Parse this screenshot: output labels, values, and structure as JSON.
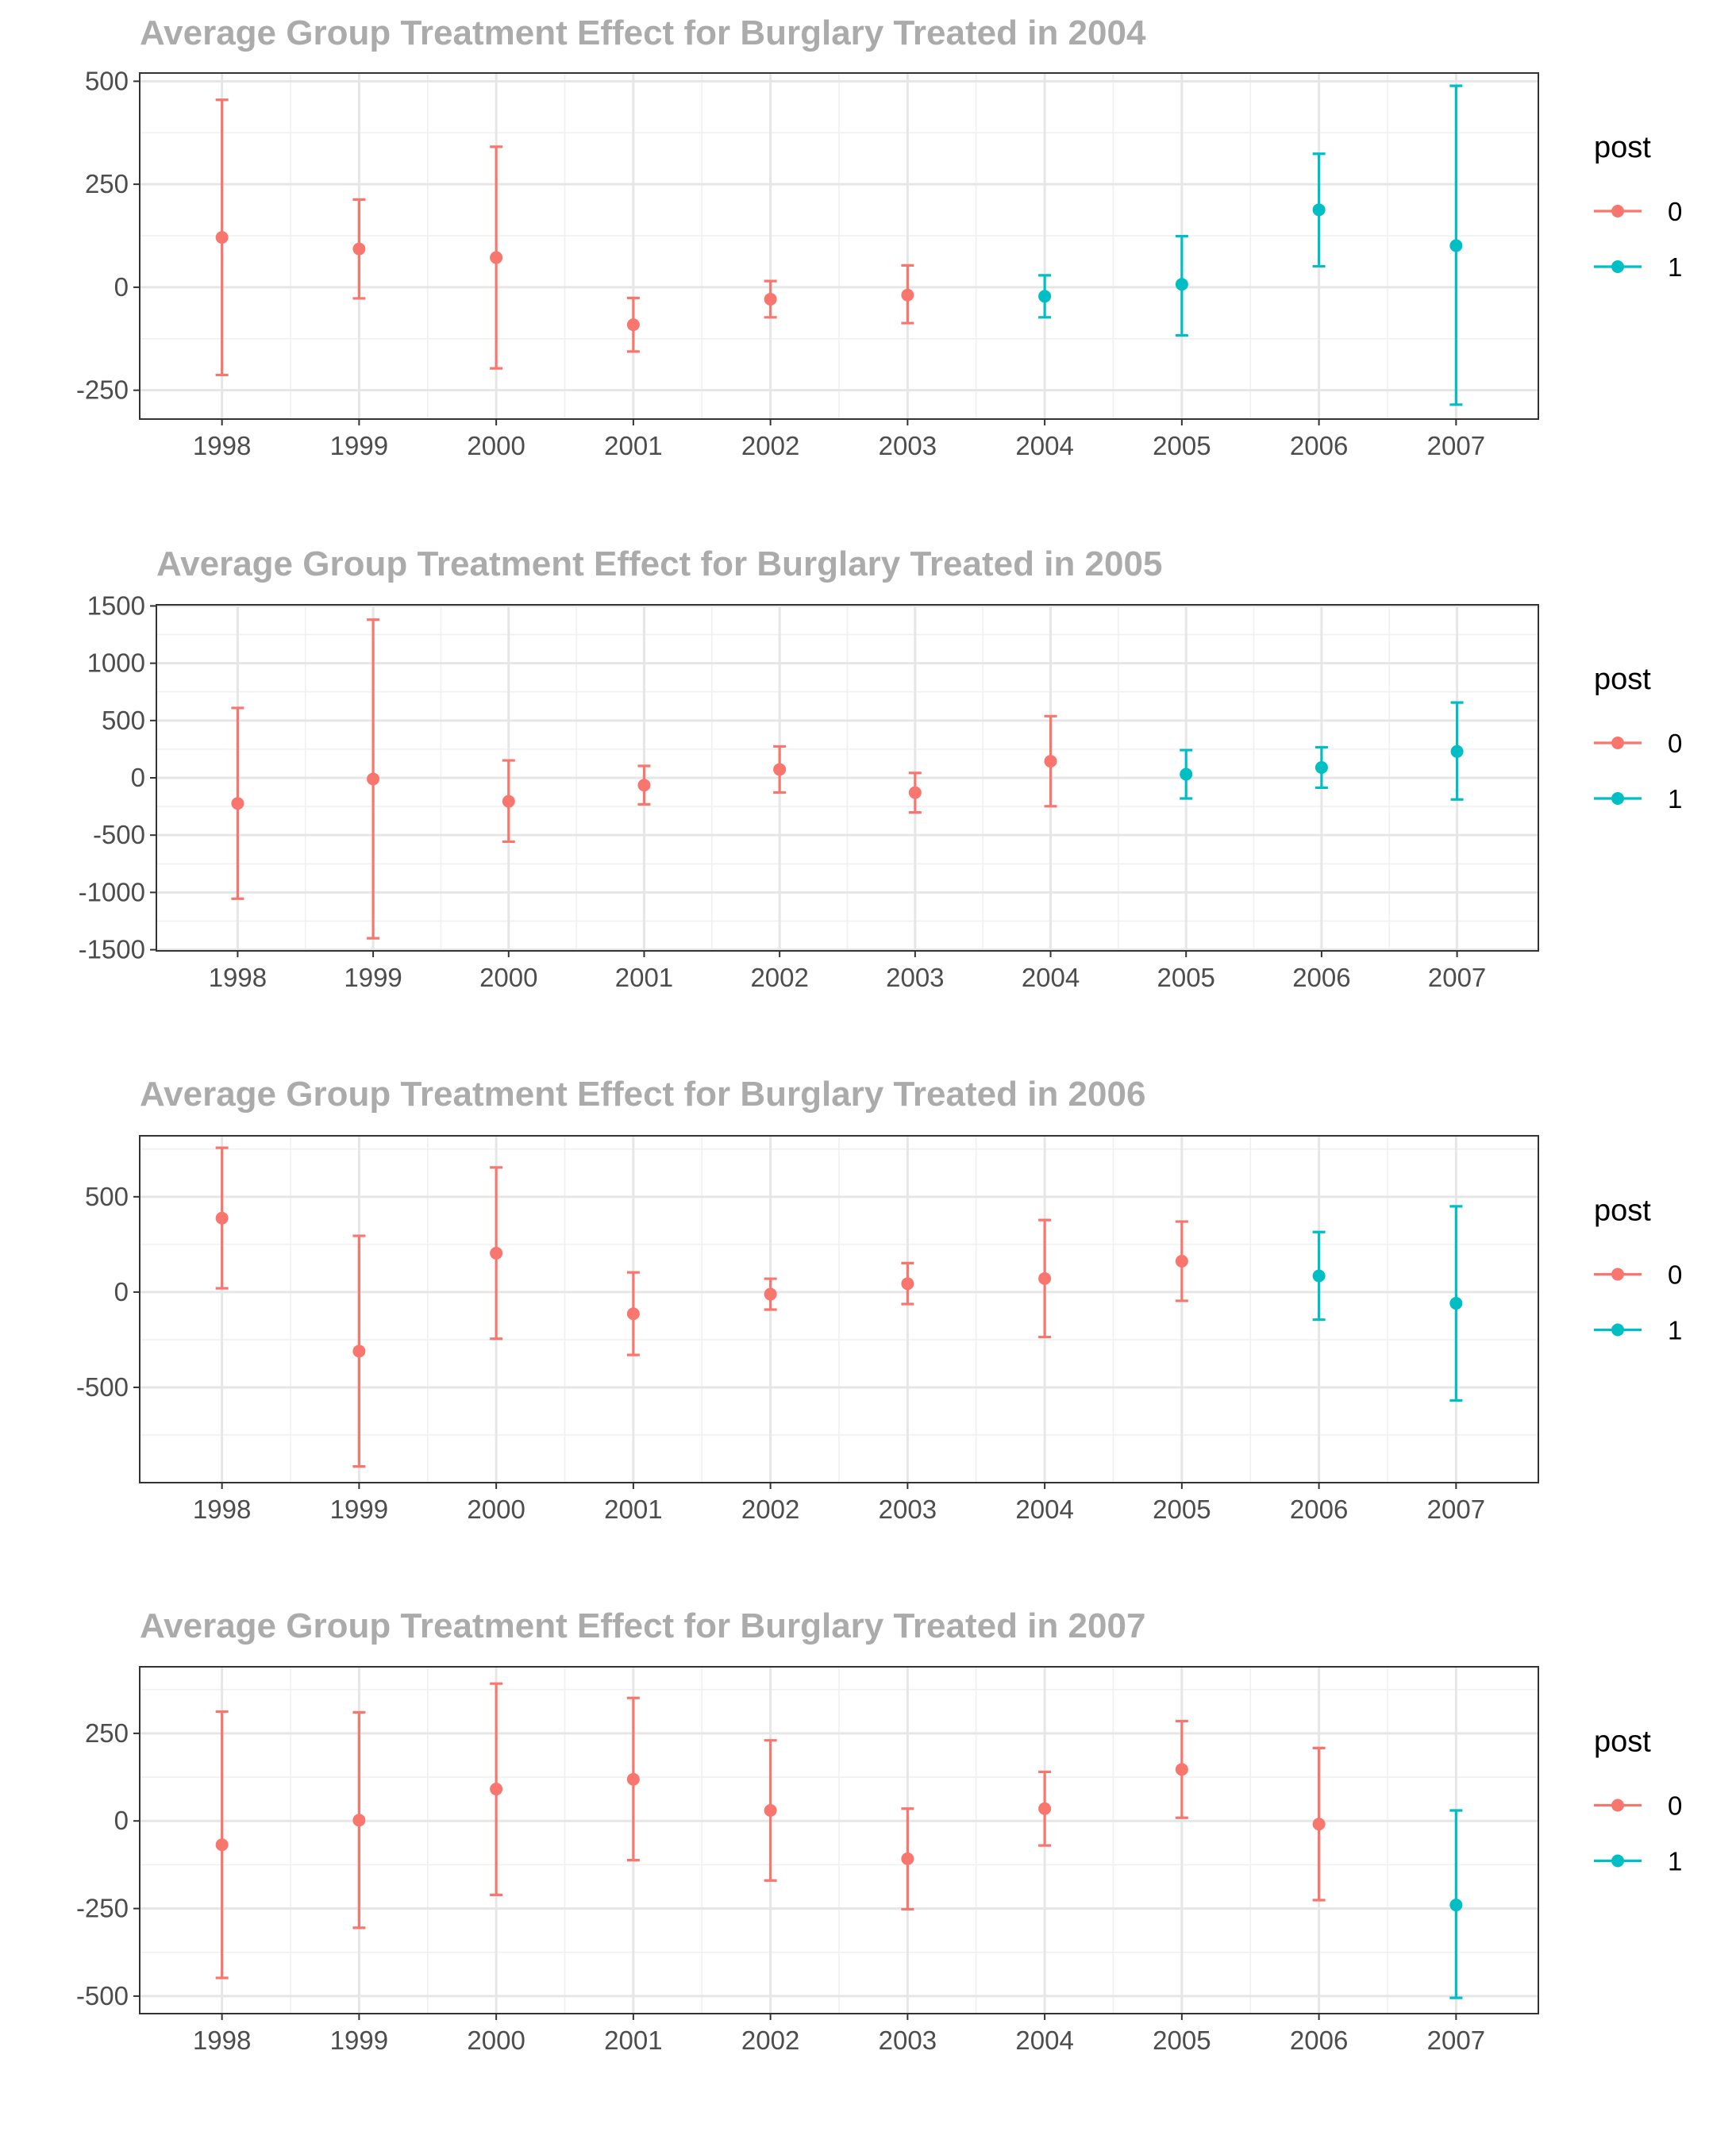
{
  "colors": {
    "pre": "#F8766D",
    "post": "#00BFC4"
  },
  "legend": {
    "title": "post",
    "entries": [
      "0",
      "1"
    ]
  },
  "chart_data": [
    {
      "type": "scatter",
      "title": "Average Group Treatment Effect for Burglary Treated in 2004",
      "categories": [
        "1998",
        "1999",
        "2000",
        "2001",
        "2002",
        "2003",
        "2004",
        "2005",
        "2006",
        "2007"
      ],
      "estimate": [
        121,
        93,
        72,
        -91,
        -29,
        -19,
        -22,
        7,
        188,
        101
      ],
      "ci_low": [
        -213,
        -27,
        -197,
        -156,
        -73,
        -87,
        -73,
        -117,
        51,
        -285
      ],
      "ci_high": [
        455,
        213,
        341,
        -26,
        15,
        53,
        29,
        124,
        324,
        489
      ],
      "post": [
        0,
        0,
        0,
        0,
        0,
        0,
        1,
        1,
        1,
        1
      ],
      "yticks": [
        -250,
        0,
        250,
        500
      ],
      "ylim": [
        -320,
        520
      ],
      "grid": true,
      "legend_position": "right"
    },
    {
      "type": "scatter",
      "title": "Average Group Treatment Effect for Burglary Treated in 2005",
      "categories": [
        "1998",
        "1999",
        "2000",
        "2001",
        "2002",
        "2003",
        "2004",
        "2005",
        "2006",
        "2007"
      ],
      "estimate": [
        -223,
        -10,
        -205,
        -64,
        73,
        -129,
        145,
        31,
        90,
        230
      ],
      "ci_low": [
        -1055,
        -1400,
        -557,
        -231,
        -128,
        -302,
        -248,
        -180,
        -86,
        -189
      ],
      "ci_high": [
        610,
        1380,
        152,
        104,
        274,
        43,
        538,
        242,
        267,
        657
      ],
      "post": [
        0,
        0,
        0,
        0,
        0,
        0,
        0,
        1,
        1,
        1
      ],
      "yticks": [
        -1500,
        -1000,
        -500,
        0,
        500,
        1000,
        1500
      ],
      "ylim": [
        -1510,
        1510
      ],
      "grid": true,
      "legend_position": "right"
    },
    {
      "type": "scatter",
      "title": "Average Group Treatment Effect for Burglary Treated in 2006",
      "categories": [
        "1998",
        "1999",
        "2000",
        "2001",
        "2002",
        "2003",
        "2004",
        "2005",
        "2006",
        "2007"
      ],
      "estimate": [
        388,
        -310,
        204,
        -114,
        -11,
        44,
        71,
        162,
        85,
        -59
      ],
      "ci_low": [
        20,
        -915,
        -245,
        -330,
        -92,
        -63,
        -236,
        -46,
        -145,
        -569
      ],
      "ci_high": [
        757,
        295,
        654,
        103,
        70,
        152,
        378,
        370,
        315,
        450
      ],
      "post": [
        0,
        0,
        0,
        0,
        0,
        0,
        0,
        0,
        1,
        1
      ],
      "yticks": [
        -500,
        0,
        500
      ],
      "ylim": [
        -1000,
        820
      ],
      "grid": true,
      "legend_position": "right"
    },
    {
      "type": "scatter",
      "title": "Average Group Treatment Effect for Burglary Treated in 2007",
      "categories": [
        "1998",
        "1999",
        "2000",
        "2001",
        "2002",
        "2003",
        "2004",
        "2005",
        "2006",
        "2007"
      ],
      "estimate": [
        -68,
        2,
        91,
        119,
        30,
        -108,
        35,
        147,
        -9,
        -240
      ],
      "ci_low": [
        -448,
        -305,
        -211,
        -112,
        -170,
        -252,
        -70,
        9,
        -226,
        -505
      ],
      "ci_high": [
        312,
        310,
        392,
        351,
        230,
        35,
        140,
        285,
        208,
        30
      ],
      "post": [
        0,
        0,
        0,
        0,
        0,
        0,
        0,
        0,
        0,
        1
      ],
      "yticks": [
        -500,
        -250,
        0,
        250
      ],
      "ylim": [
        -550,
        440
      ],
      "grid": true,
      "legend_position": "right"
    }
  ]
}
